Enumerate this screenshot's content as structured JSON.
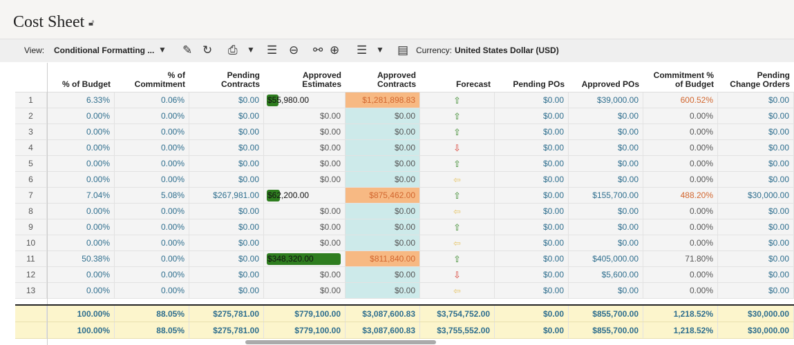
{
  "header": {
    "title": "Cost Sheet",
    "lock_icon": "lock-icon"
  },
  "toolbar": {
    "view_label": "View:",
    "view_value": "Conditional Formatting ...",
    "currency_label": "Currency:",
    "currency_value": "United States Dollar (USD)"
  },
  "columns": [
    "% of Budget",
    "% of Commitment",
    "Pending Contracts",
    "Approved Estimates",
    "Approved Contracts",
    "Forecast",
    "Pending POs",
    "Approved POs",
    "Commitment % of Budget",
    "Pending Change Orders"
  ],
  "columns_l1": [
    "",
    "% of",
    "Pending",
    "Approved",
    "Approved",
    "",
    "",
    "",
    "Commitment %",
    "Pending"
  ],
  "columns_l2": [
    "% of Budget",
    "Commitment",
    "Contracts",
    "Estimates",
    "Contracts",
    "Forecast",
    "Pending POs",
    "Approved POs",
    "of Budget",
    "Change Orders"
  ],
  "rows": [
    {
      "n": "1",
      "c": [
        "6.33%",
        "0.06%",
        "$0.00",
        "$55,980.00",
        "$1,281,898.83",
        "up",
        "$0.00",
        "$39,000.00",
        "600.52%",
        "$0.00"
      ],
      "bar": 0.072,
      "hi": true
    },
    {
      "n": "2",
      "c": [
        "0.00%",
        "0.00%",
        "$0.00",
        "$0.00",
        "$0.00",
        "up",
        "$0.00",
        "$0.00",
        "0.00%",
        "$0.00"
      ]
    },
    {
      "n": "3",
      "c": [
        "0.00%",
        "0.00%",
        "$0.00",
        "$0.00",
        "$0.00",
        "up",
        "$0.00",
        "$0.00",
        "0.00%",
        "$0.00"
      ]
    },
    {
      "n": "4",
      "c": [
        "0.00%",
        "0.00%",
        "$0.00",
        "$0.00",
        "$0.00",
        "down",
        "$0.00",
        "$0.00",
        "0.00%",
        "$0.00"
      ]
    },
    {
      "n": "5",
      "c": [
        "0.00%",
        "0.00%",
        "$0.00",
        "$0.00",
        "$0.00",
        "up",
        "$0.00",
        "$0.00",
        "0.00%",
        "$0.00"
      ]
    },
    {
      "n": "6",
      "c": [
        "0.00%",
        "0.00%",
        "$0.00",
        "$0.00",
        "$0.00",
        "left",
        "$0.00",
        "$0.00",
        "0.00%",
        "$0.00"
      ]
    },
    {
      "n": "7",
      "c": [
        "7.04%",
        "5.08%",
        "$267,981.00",
        "$62,200.00",
        "$875,462.00",
        "up",
        "$0.00",
        "$155,700.00",
        "488.20%",
        "$30,000.00"
      ],
      "bar": 0.08,
      "hi": true
    },
    {
      "n": "8",
      "c": [
        "0.00%",
        "0.00%",
        "$0.00",
        "$0.00",
        "$0.00",
        "left",
        "$0.00",
        "$0.00",
        "0.00%",
        "$0.00"
      ]
    },
    {
      "n": "9",
      "c": [
        "0.00%",
        "0.00%",
        "$0.00",
        "$0.00",
        "$0.00",
        "up",
        "$0.00",
        "$0.00",
        "0.00%",
        "$0.00"
      ]
    },
    {
      "n": "10",
      "c": [
        "0.00%",
        "0.00%",
        "$0.00",
        "$0.00",
        "$0.00",
        "left",
        "$0.00",
        "$0.00",
        "0.00%",
        "$0.00"
      ]
    },
    {
      "n": "11",
      "c": [
        "50.38%",
        "0.00%",
        "$0.00",
        "$348,320.00",
        "$811,840.00",
        "up",
        "$0.00",
        "$405,000.00",
        "71.80%",
        "$0.00"
      ],
      "bar": 0.447,
      "hi": true
    },
    {
      "n": "12",
      "c": [
        "0.00%",
        "0.00%",
        "$0.00",
        "$0.00",
        "$0.00",
        "down",
        "$0.00",
        "$5,600.00",
        "0.00%",
        "$0.00"
      ]
    },
    {
      "n": "13",
      "c": [
        "0.00%",
        "0.00%",
        "$0.00",
        "$0.00",
        "$0.00",
        "left",
        "$0.00",
        "$0.00",
        "0.00%",
        "$0.00"
      ]
    }
  ],
  "totals": [
    [
      "100.00%",
      "88.05%",
      "$275,781.00",
      "$779,100.00",
      "$3,087,600.83",
      "$3,754,752.00",
      "$0.00",
      "$855,700.00",
      "1,218.52%",
      "$30,000.00"
    ],
    [
      "100.00%",
      "88.05%",
      "$275,781.00",
      "$779,100.00",
      "$3,087,600.83",
      "$3,755,552.00",
      "$0.00",
      "$855,700.00",
      "1,218.52%",
      "$30,000.00"
    ]
  ],
  "colors": {
    "bar": "#2e7d1f",
    "orange": "#f7b983",
    "teal": "#cdeaea",
    "total": "#fcf5cc"
  }
}
